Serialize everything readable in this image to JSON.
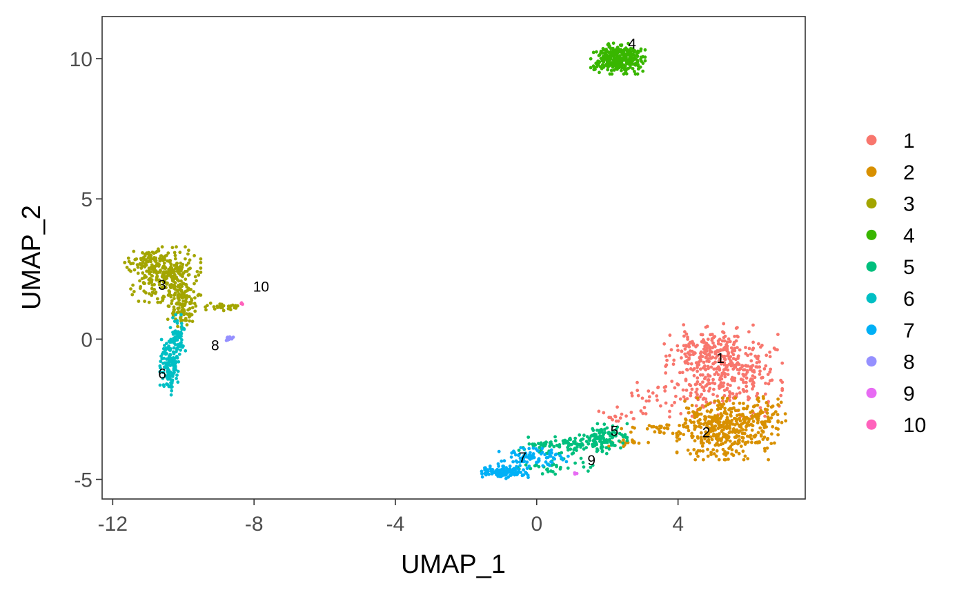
{
  "chart_data": {
    "type": "scatter",
    "title": "",
    "xlabel": "UMAP_1",
    "ylabel": "UMAP_2",
    "xlim": [
      -12.3,
      7.6
    ],
    "ylim": [
      -5.7,
      11.5
    ],
    "x_ticks": [
      -12,
      -8,
      -4,
      0,
      4
    ],
    "x_tick_labels": [
      "-12",
      "-8",
      "-4",
      "0",
      "4"
    ],
    "y_ticks": [
      -5,
      0,
      5,
      10
    ],
    "y_tick_labels": [
      "-5",
      "0",
      "5",
      "10"
    ],
    "grid": false,
    "legend_position": "right",
    "legend": [
      "1",
      "2",
      "3",
      "4",
      "5",
      "6",
      "7",
      "8",
      "9",
      "10"
    ],
    "colors": [
      "#F8766D",
      "#D89000",
      "#A3A500",
      "#39B600",
      "#00BF7D",
      "#00BFC4",
      "#00B0F6",
      "#9590FF",
      "#E76BF3",
      "#FF62BC"
    ],
    "cluster_labels": [
      {
        "text": "1",
        "x": 5.2,
        "y": -0.85
      },
      {
        "text": "2",
        "x": 4.8,
        "y": -3.5
      },
      {
        "text": "3",
        "x": -10.6,
        "y": 1.75
      },
      {
        "text": "4",
        "x": 2.7,
        "y": 10.35
      },
      {
        "text": "5",
        "x": 2.2,
        "y": -3.45
      },
      {
        "text": "6",
        "x": -10.6,
        "y": -1.4
      },
      {
        "text": "7",
        "x": -0.4,
        "y": -4.4
      },
      {
        "text": "8",
        "x": -9.1,
        "y": -0.4
      },
      {
        "text": "9",
        "x": 1.55,
        "y": -4.5
      },
      {
        "text": "10",
        "x": -7.8,
        "y": 1.7
      }
    ],
    "clusters": [
      {
        "id": "1",
        "n": 520,
        "regions": [
          {
            "cx": 5.3,
            "cy": -1.1,
            "sx": 0.75,
            "sy": 0.75,
            "w": 0.7
          },
          {
            "cx": 4.6,
            "cy": -0.4,
            "sx": 0.45,
            "sy": 0.3,
            "w": 0.15
          },
          {
            "cx": 3.6,
            "cy": -2.2,
            "sx": 0.6,
            "sy": 0.35,
            "w": 0.1
          },
          {
            "cx": 2.4,
            "cy": -2.8,
            "sx": 0.35,
            "sy": 0.15,
            "w": 0.05
          }
        ]
      },
      {
        "id": "2",
        "n": 520,
        "regions": [
          {
            "cx": 5.4,
            "cy": -3.2,
            "sx": 0.65,
            "sy": 0.5,
            "w": 0.82
          },
          {
            "cx": 6.4,
            "cy": -2.6,
            "sx": 0.3,
            "sy": 0.25,
            "w": 0.08
          },
          {
            "cx": 3.5,
            "cy": -3.2,
            "sx": 0.5,
            "sy": 0.12,
            "w": 0.06
          },
          {
            "cx": 2.5,
            "cy": -3.7,
            "sx": 0.3,
            "sy": 0.1,
            "w": 0.04
          }
        ]
      },
      {
        "id": "3",
        "n": 480,
        "regions": [
          {
            "cx": -10.5,
            "cy": 2.3,
            "sx": 0.45,
            "sy": 0.45,
            "w": 0.55
          },
          {
            "cx": -11.0,
            "cy": 2.8,
            "sx": 0.3,
            "sy": 0.15,
            "w": 0.15
          },
          {
            "cx": -10.0,
            "cy": 1.2,
            "sx": 0.2,
            "sy": 0.4,
            "w": 0.25
          },
          {
            "cx": -8.8,
            "cy": 1.15,
            "sx": 0.3,
            "sy": 0.06,
            "w": 0.05
          }
        ]
      },
      {
        "id": "4",
        "n": 320,
        "regions": [
          {
            "cx": 2.3,
            "cy": 10.0,
            "sx": 0.35,
            "sy": 0.25,
            "w": 1.0
          }
        ]
      },
      {
        "id": "5",
        "n": 240,
        "regions": [
          {
            "cx": 1.9,
            "cy": -3.5,
            "sx": 0.3,
            "sy": 0.22,
            "w": 0.45
          },
          {
            "cx": 0.8,
            "cy": -3.75,
            "sx": 0.6,
            "sy": 0.15,
            "w": 0.4
          },
          {
            "cx": 0.5,
            "cy": -4.5,
            "sx": 0.5,
            "sy": 0.2,
            "w": 0.15
          }
        ]
      },
      {
        "id": "6",
        "n": 210,
        "regions": [
          {
            "cx": -10.4,
            "cy": -1.0,
            "sx": 0.12,
            "sy": 0.45,
            "w": 0.65
          },
          {
            "cx": -10.15,
            "cy": 0.1,
            "sx": 0.1,
            "sy": 0.35,
            "w": 0.35
          }
        ]
      },
      {
        "id": "7",
        "n": 200,
        "regions": [
          {
            "cx": -0.9,
            "cy": -4.75,
            "sx": 0.3,
            "sy": 0.1,
            "w": 0.65
          },
          {
            "cx": -0.1,
            "cy": -4.2,
            "sx": 0.45,
            "sy": 0.15,
            "w": 0.35
          }
        ]
      },
      {
        "id": "8",
        "n": 10,
        "regions": [
          {
            "cx": -8.65,
            "cy": 0.02,
            "sx": 0.08,
            "sy": 0.04,
            "w": 1.0
          }
        ]
      },
      {
        "id": "9",
        "n": 3,
        "regions": [
          {
            "cx": 1.12,
            "cy": -4.8,
            "sx": 0.03,
            "sy": 0.02,
            "w": 1.0
          }
        ]
      },
      {
        "id": "10",
        "n": 4,
        "regions": [
          {
            "cx": -8.35,
            "cy": 1.28,
            "sx": 0.03,
            "sy": 0.02,
            "w": 1.0
          }
        ]
      }
    ]
  }
}
